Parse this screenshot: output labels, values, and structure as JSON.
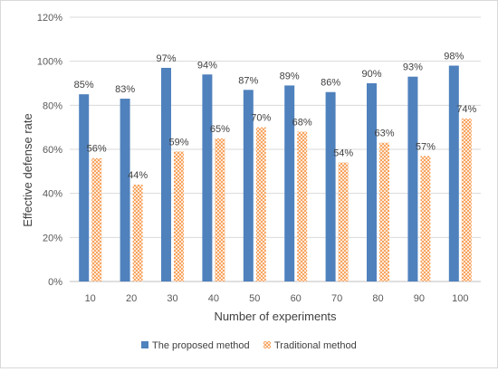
{
  "chart_data": {
    "type": "bar",
    "categories": [
      "10",
      "20",
      "30",
      "40",
      "50",
      "60",
      "70",
      "80",
      "90",
      "100"
    ],
    "series": [
      {
        "name": "The proposed method",
        "values": [
          85,
          83,
          97,
          94,
          87,
          89,
          86,
          90,
          93,
          98
        ],
        "labels": [
          "85%",
          "83%",
          "97%",
          "94%",
          "87%",
          "89%",
          "86%",
          "90%",
          "93%",
          "98%"
        ],
        "color": "#4f81bd",
        "pattern": "solid"
      },
      {
        "name": "Traditional method",
        "values": [
          56,
          44,
          59,
          65,
          70,
          68,
          54,
          63,
          57,
          74
        ],
        "labels": [
          "56%",
          "44%",
          "59%",
          "65%",
          "70%",
          "68%",
          "54%",
          "63%",
          "57%",
          "74%"
        ],
        "color": "#f79646",
        "pattern": "crosshatch"
      }
    ],
    "title": "",
    "xlabel": "Number of experiments",
    "ylabel": "Effective defense rate",
    "ylim": [
      0,
      120
    ],
    "yticks": [
      0,
      20,
      40,
      60,
      80,
      100,
      120
    ],
    "ytick_labels": [
      "0%",
      "20%",
      "40%",
      "60%",
      "80%",
      "100%",
      "120%"
    ],
    "grid": true,
    "legend": "bottom"
  }
}
